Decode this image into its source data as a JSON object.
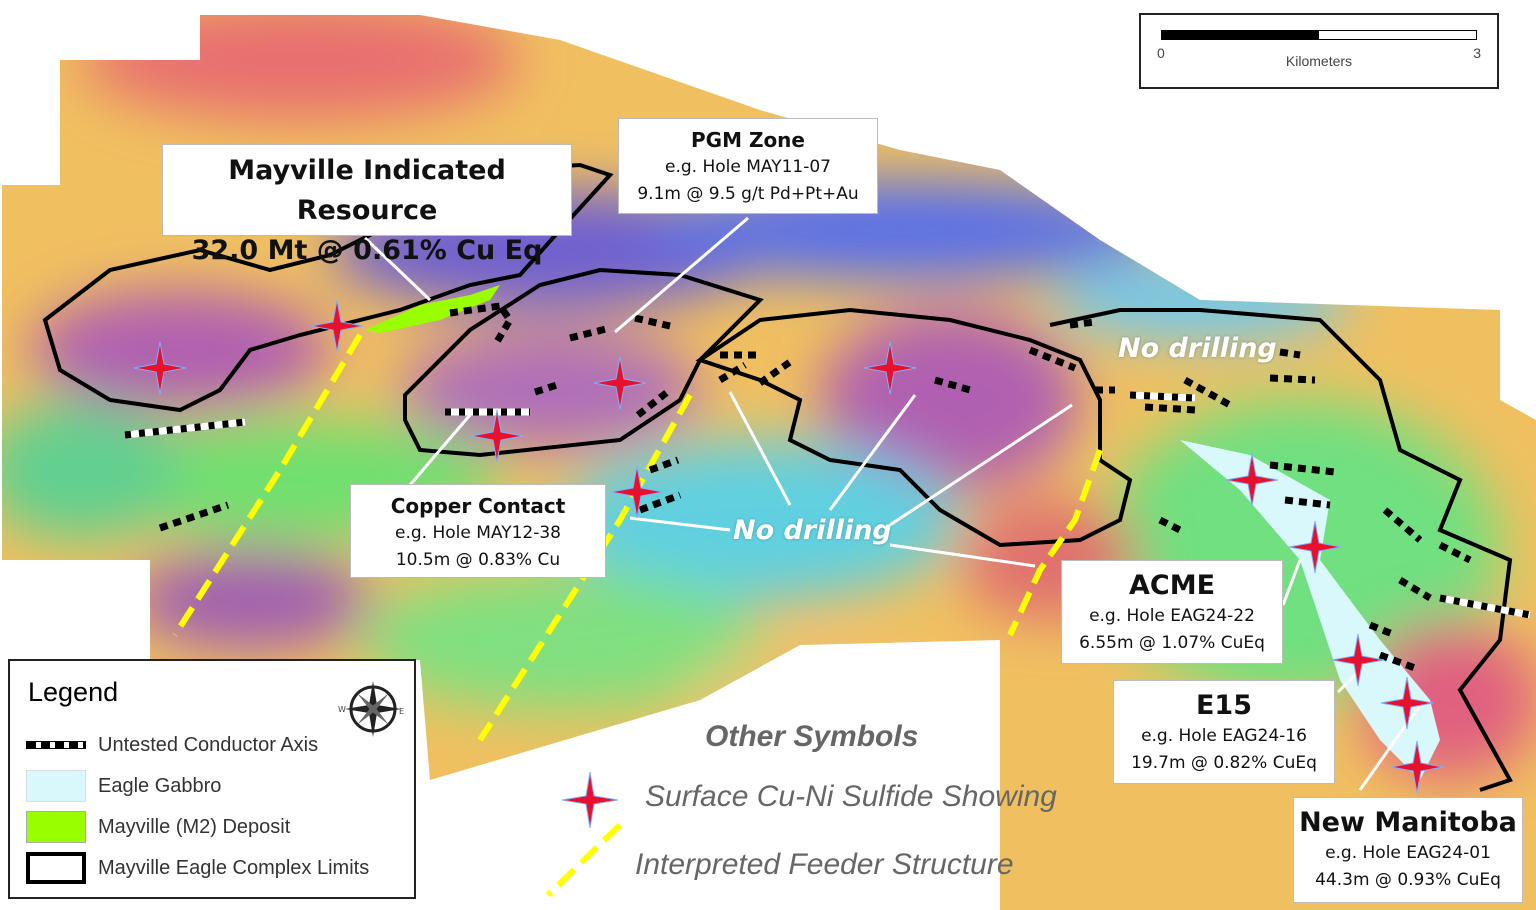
{
  "scale_bar": {
    "start": "0",
    "end": "3",
    "unit": "Kilometers"
  },
  "callouts": {
    "mayville": {
      "title": "Mayville Indicated Resource",
      "line1": "32.0 Mt @ 0.61% Cu Eq"
    },
    "pgm": {
      "title": "PGM Zone",
      "line1": "e.g. Hole MAY11-07",
      "line2": "9.1m @ 9.5 g/t Pd+Pt+Au"
    },
    "copper": {
      "title": "Copper Contact",
      "line1": "e.g. Hole MAY12-38",
      "line2": "10.5m @ 0.83% Cu"
    },
    "acme": {
      "title": "ACME",
      "line1": "e.g. Hole EAG24-22",
      "line2": "6.55m @ 1.07% CuEq"
    },
    "e15": {
      "title": "E15",
      "line1": "e.g. Hole EAG24-16",
      "line2": "19.7m @ 0.82% CuEq"
    },
    "new_manitoba": {
      "title": "New Manitoba",
      "line1": "e.g. Hole EAG24-01",
      "line2": "44.3m @ 0.93% CuEq"
    }
  },
  "annotations": {
    "no_drilling_east": "No drilling",
    "no_drilling_central": "No drilling"
  },
  "legend": {
    "title": "Legend",
    "items": [
      {
        "label": "Untested Conductor Axis",
        "symbol": "dashed-black-white-line"
      },
      {
        "label": "Eagle Gabbro",
        "color": "#d9f8fc"
      },
      {
        "label": "Mayville (M2) Deposit",
        "color": "#99ff00"
      },
      {
        "label": "Mayville Eagle Complex Limits",
        "symbol": "black-outline"
      }
    ],
    "compass_icon": "compass-rose-icon"
  },
  "other_symbols": {
    "title": "Other Symbols",
    "items": [
      {
        "label": "Surface Cu-Ni Sulfide Showing",
        "symbol": "red-star-icon",
        "color": "#e8112d"
      },
      {
        "label": "Interpreted Feeder Structure",
        "symbol": "yellow-dashed-line",
        "color": "#ffff00"
      }
    ]
  }
}
